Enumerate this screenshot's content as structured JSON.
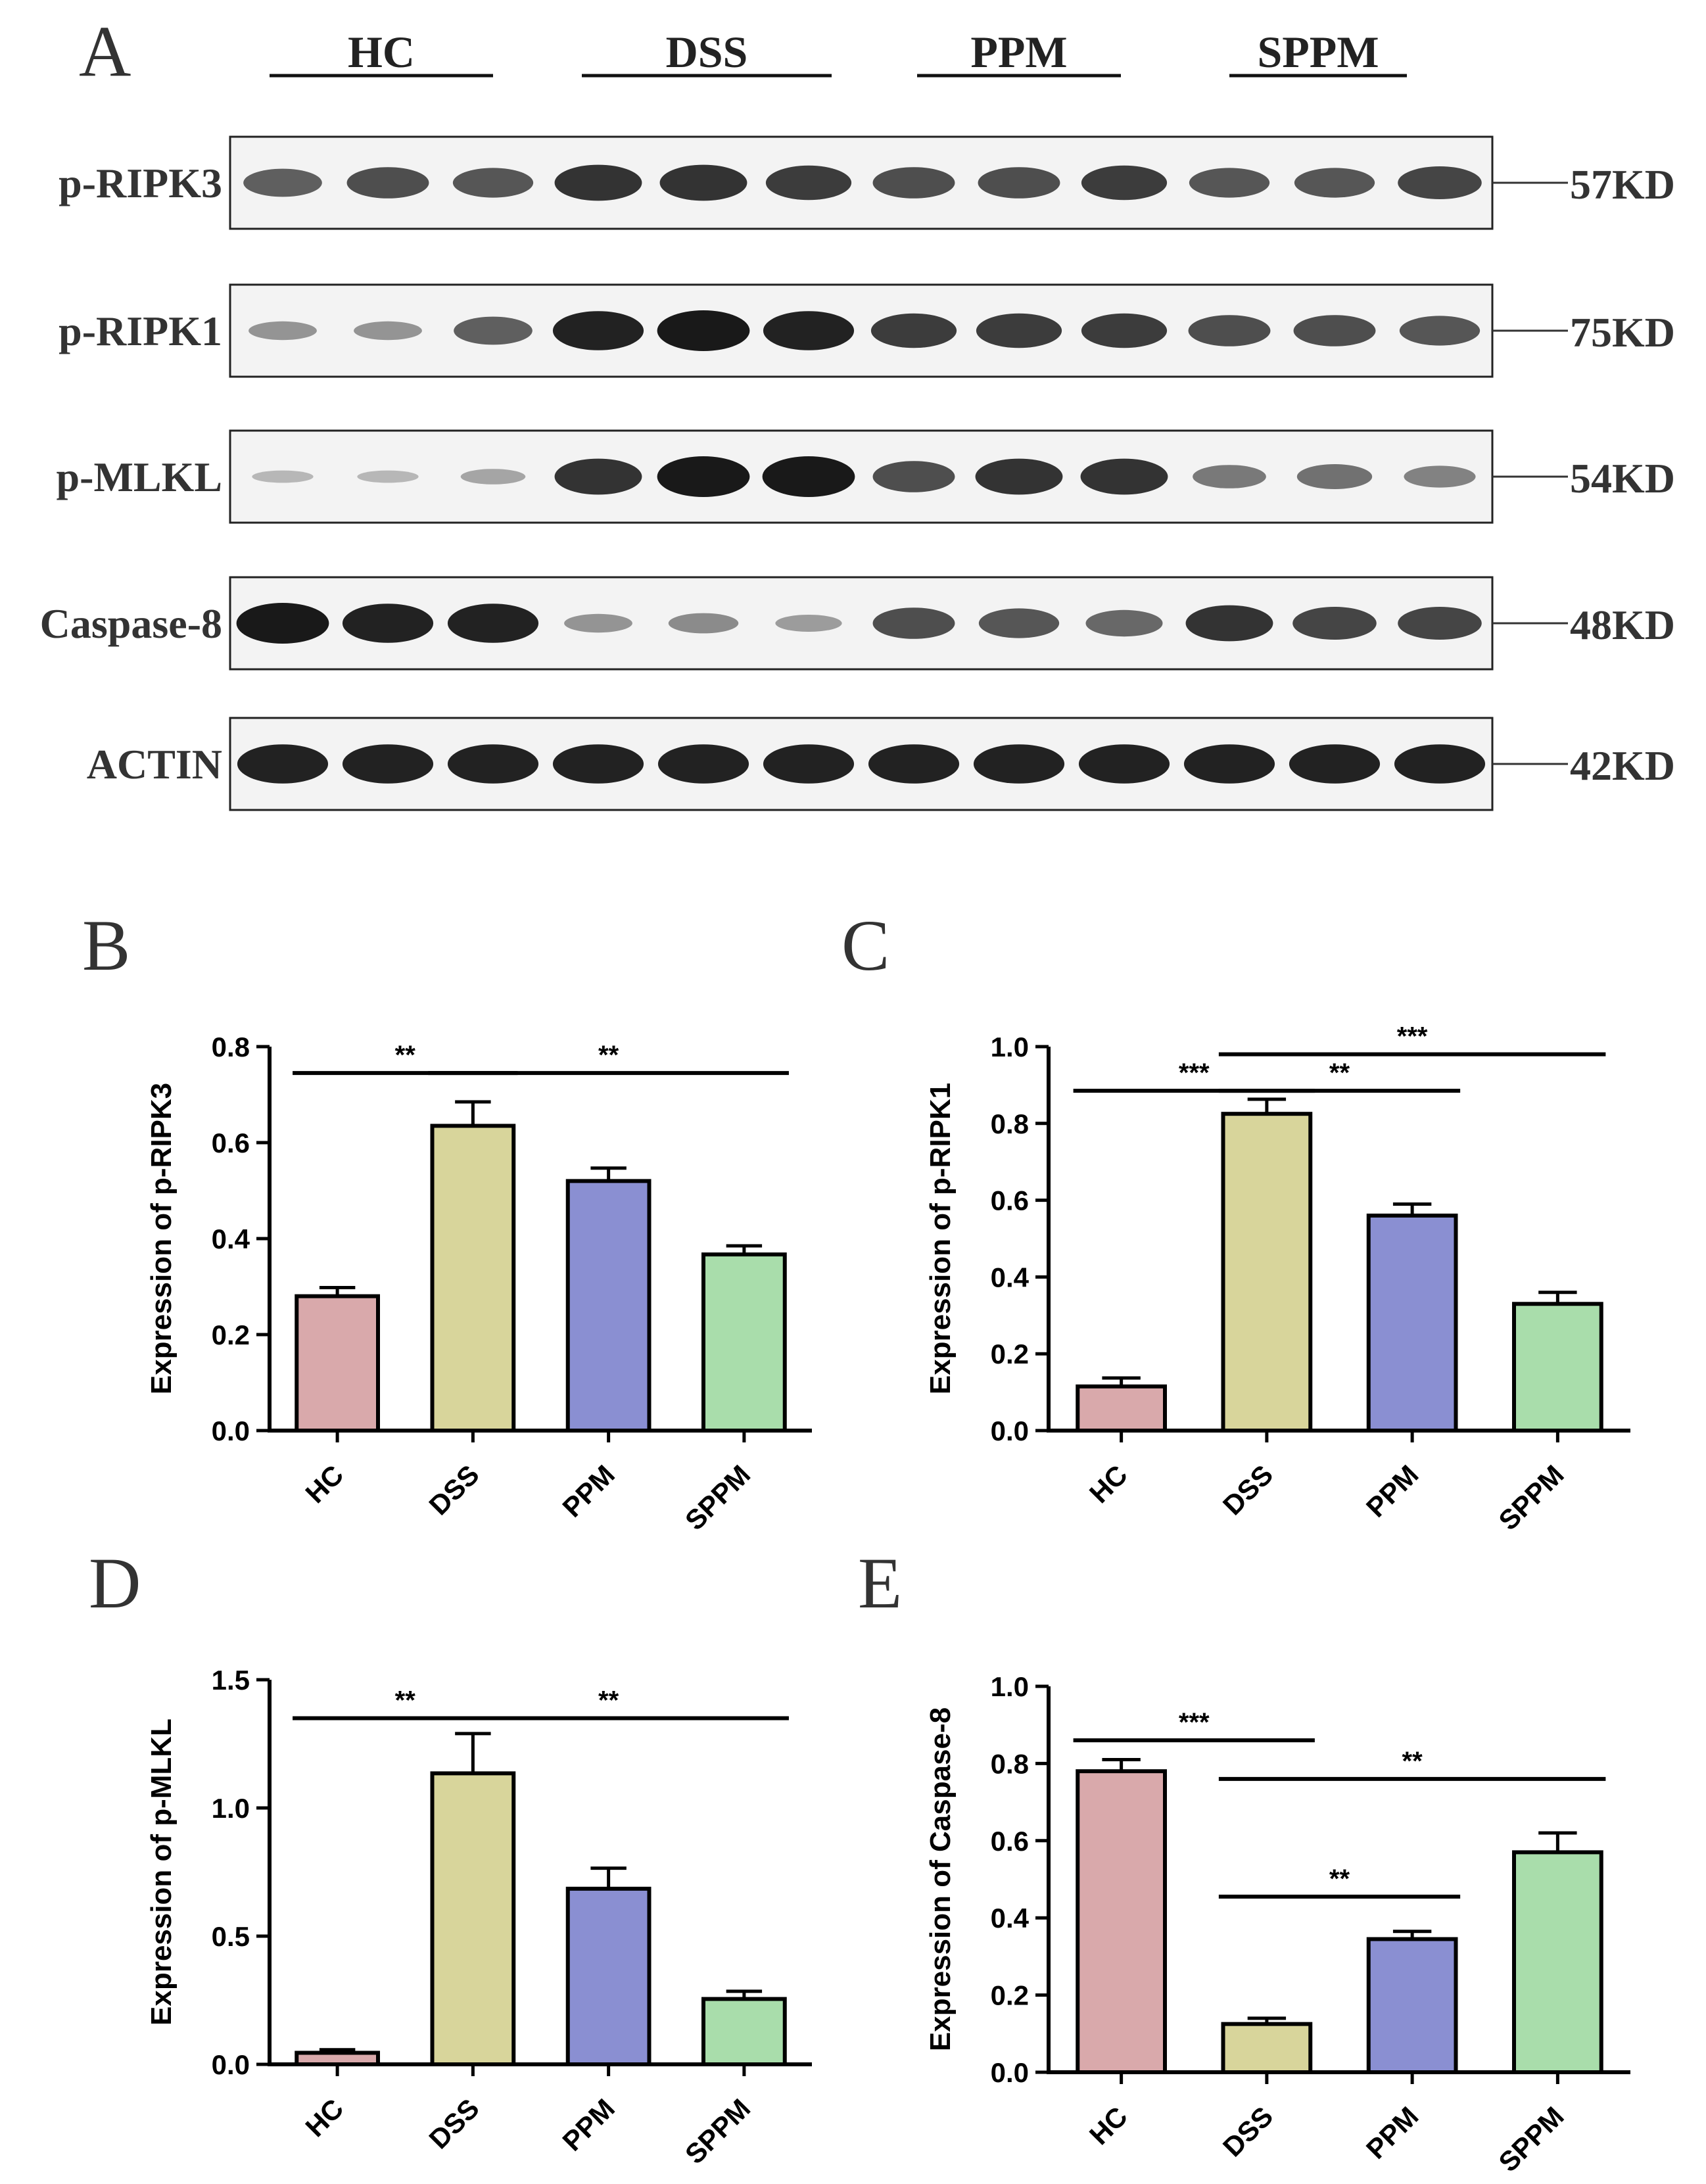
{
  "panels": {
    "a": "A",
    "b": "B",
    "c": "C",
    "d": "D",
    "e": "E"
  },
  "blot": {
    "groups": [
      "HC",
      "DSS",
      "PPM",
      "SPPM"
    ],
    "lanes_per_group": 3,
    "rows": [
      {
        "protein": "p-RIPK3",
        "weight": "57KD",
        "band_intensity": [
          0.6,
          0.7,
          0.65,
          0.85,
          0.85,
          0.8,
          0.7,
          0.7,
          0.8,
          0.65,
          0.65,
          0.75
        ]
      },
      {
        "protein": "p-RIPK1",
        "weight": "75KD",
        "band_intensity": [
          0.3,
          0.3,
          0.6,
          0.95,
          1.0,
          0.95,
          0.8,
          0.8,
          0.8,
          0.7,
          0.7,
          0.65
        ]
      },
      {
        "protein": "p-MLKL",
        "weight": "54KD",
        "band_intensity": [
          0.1,
          0.1,
          0.2,
          0.85,
          1.0,
          1.0,
          0.7,
          0.85,
          0.85,
          0.45,
          0.5,
          0.4
        ]
      },
      {
        "protein": "Caspase-8",
        "weight": "48KD",
        "band_intensity": [
          1.0,
          0.95,
          0.95,
          0.3,
          0.35,
          0.25,
          0.7,
          0.65,
          0.55,
          0.85,
          0.75,
          0.75
        ]
      },
      {
        "protein": "ACTIN",
        "weight": "42KD",
        "band_intensity": [
          0.95,
          0.95,
          0.95,
          0.95,
          0.95,
          0.95,
          0.95,
          0.95,
          0.95,
          0.95,
          0.95,
          0.95
        ]
      }
    ]
  },
  "chart_data": [
    {
      "type": "bar",
      "panel": "B",
      "categories": [
        "HC",
        "DSS",
        "PPM",
        "SPPM"
      ],
      "values": [
        0.28,
        0.635,
        0.52,
        0.367
      ],
      "errors": [
        0.018,
        0.05,
        0.027,
        0.018
      ],
      "ylabel": "Expression of p-RIPK3",
      "ylim": [
        0,
        0.8
      ],
      "yticks": [
        0.0,
        0.2,
        0.4,
        0.6,
        0.8
      ],
      "tick_labels": [
        "0.0",
        "0.2",
        "0.4",
        "0.6",
        "0.8"
      ],
      "significance": [
        {
          "from": 0,
          "to": 1,
          "label": "**",
          "level": 0.745
        },
        {
          "from": 1,
          "to": 3,
          "label": "**",
          "level": 0.745
        }
      ]
    },
    {
      "type": "bar",
      "panel": "C",
      "categories": [
        "HC",
        "DSS",
        "PPM",
        "SPPM"
      ],
      "values": [
        0.115,
        0.825,
        0.56,
        0.33
      ],
      "errors": [
        0.022,
        0.038,
        0.03,
        0.03
      ],
      "ylabel": "Expression of p-RIPK1",
      "ylim": [
        0,
        1.0
      ],
      "yticks": [
        0.0,
        0.2,
        0.4,
        0.6,
        0.8,
        1.0
      ],
      "tick_labels": [
        "0.0",
        "0.2",
        "0.4",
        "0.6",
        "0.8",
        "1.0"
      ],
      "significance": [
        {
          "from": 0,
          "to": 1,
          "label": "***",
          "level": 0.885
        },
        {
          "from": 1,
          "to": 2,
          "label": "**",
          "level": 0.885
        },
        {
          "from": 1,
          "to": 3,
          "label": "***",
          "level": 0.98
        }
      ]
    },
    {
      "type": "bar",
      "panel": "D",
      "categories": [
        "HC",
        "DSS",
        "PPM",
        "SPPM"
      ],
      "values": [
        0.045,
        1.135,
        0.685,
        0.255
      ],
      "errors": [
        0.012,
        0.155,
        0.08,
        0.03
      ],
      "ylabel": "Expression of p-MLKL",
      "ylim": [
        0,
        1.5
      ],
      "yticks": [
        0.0,
        0.5,
        1.0,
        1.5
      ],
      "tick_labels": [
        "0.0",
        "0.5",
        "1.0",
        "1.5"
      ],
      "significance": [
        {
          "from": 0,
          "to": 1,
          "label": "**",
          "level": 1.35
        },
        {
          "from": 1,
          "to": 3,
          "label": "**",
          "level": 1.35
        }
      ]
    },
    {
      "type": "bar",
      "panel": "E",
      "categories": [
        "HC",
        "DSS",
        "PPM",
        "SPPM"
      ],
      "values": [
        0.78,
        0.125,
        0.345,
        0.57
      ],
      "errors": [
        0.03,
        0.015,
        0.02,
        0.05
      ],
      "ylabel": "Expression of Caspase-8",
      "ylim": [
        0,
        1.0
      ],
      "yticks": [
        0.0,
        0.2,
        0.4,
        0.6,
        0.8,
        1.0
      ],
      "tick_labels": [
        "0.0",
        "0.2",
        "0.4",
        "0.6",
        "0.8",
        "1.0"
      ],
      "significance": [
        {
          "from": 0,
          "to": 1,
          "label": "***",
          "level": 0.86
        },
        {
          "from": 1,
          "to": 3,
          "label": "**",
          "level": 0.76
        },
        {
          "from": 1,
          "to": 2,
          "label": "**",
          "level": 0.455
        }
      ]
    }
  ],
  "colors": {
    "HC": "#d9a9ab",
    "DSS": "#d8d59b",
    "PPM": "#8a8fd2",
    "SPPM": "#a9ddab"
  }
}
